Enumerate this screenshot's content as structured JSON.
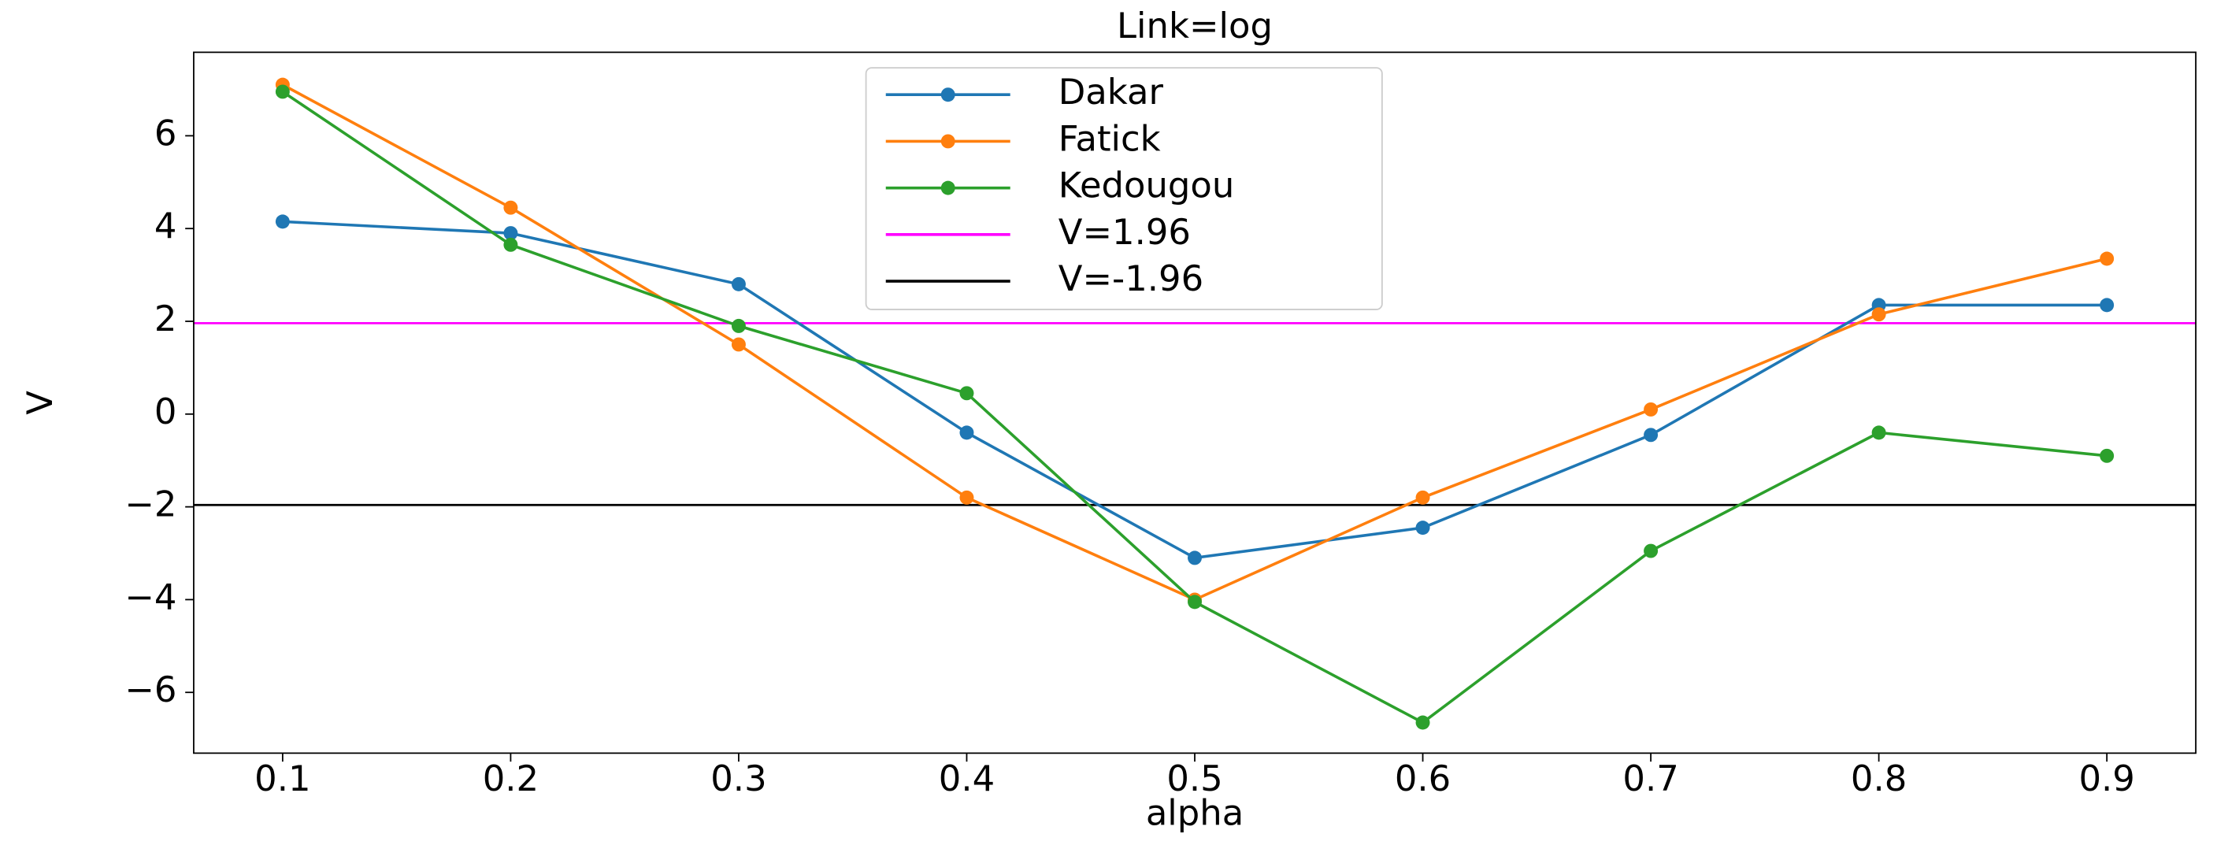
{
  "chart_data": {
    "type": "line",
    "title": "Link=log",
    "xlabel": "alpha",
    "ylabel": "V",
    "x": [
      0.1,
      0.2,
      0.3,
      0.4,
      0.5,
      0.6,
      0.7,
      0.8,
      0.9
    ],
    "series": [
      {
        "name": "Dakar",
        "color": "#1f77b4",
        "values": [
          4.15,
          3.9,
          2.8,
          -0.4,
          -3.1,
          -2.45,
          -0.45,
          2.35,
          2.35
        ]
      },
      {
        "name": "Fatick",
        "color": "#ff7f0e",
        "values": [
          7.1,
          4.45,
          1.5,
          -1.8,
          -4.0,
          -1.8,
          0.1,
          2.15,
          3.35
        ]
      },
      {
        "name": "Kedougou",
        "color": "#2ca02c",
        "values": [
          6.95,
          3.65,
          1.9,
          0.45,
          -4.05,
          -6.65,
          -2.95,
          -0.4,
          -0.9
        ]
      }
    ],
    "hlines": [
      {
        "name": "V=1.96",
        "color": "#ff00ff",
        "value": 1.96
      },
      {
        "name": "V=-1.96",
        "color": "#000000",
        "value": -1.96
      }
    ],
    "xlim": [
      0.061,
      0.939
    ],
    "ylim": [
      -7.31,
      7.8
    ],
    "xticks": [
      0.1,
      0.2,
      0.3,
      0.4,
      0.5,
      0.6,
      0.7,
      0.8,
      0.9
    ],
    "yticks": [
      {
        "value": -6,
        "label": "−6"
      },
      {
        "value": -4,
        "label": "−4"
      },
      {
        "value": -2,
        "label": "−2"
      },
      0,
      2,
      4,
      6
    ],
    "legend": "upper center",
    "grid": false
  }
}
